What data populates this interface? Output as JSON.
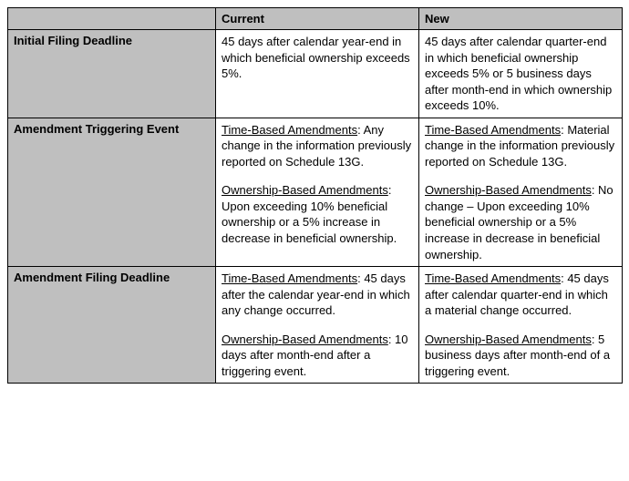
{
  "columns": [
    "Current",
    "New"
  ],
  "rows": [
    {
      "label": "Initial Filing Deadline",
      "current": [
        {
          "lead": null,
          "body": "45 days after calendar year-end in which beneficial ownership exceeds 5%."
        }
      ],
      "new": [
        {
          "lead": null,
          "body": "45 days after calendar quarter-end in which beneficial ownership exceeds 5% or 5 business days after month-end in which ownership exceeds 10%."
        }
      ]
    },
    {
      "label": "Amendment Triggering Event",
      "current": [
        {
          "lead": "Time-Based Amendments",
          "body": ": Any change in the information previously reported on Schedule 13G."
        },
        {
          "lead": "Ownership-Based Amendments",
          "body": ": Upon exceeding 10% beneficial ownership or a 5% increase in decrease in beneficial ownership."
        }
      ],
      "new": [
        {
          "lead": "Time-Based Amendments",
          "body": ": Material change in the information previously reported on Schedule 13G."
        },
        {
          "lead": "Ownership-Based Amendments",
          "body": ": No change – Upon exceeding 10% beneficial ownership or a 5% increase in decrease in beneficial ownership."
        }
      ]
    },
    {
      "label": "Amendment Filing Deadline",
      "current": [
        {
          "lead": "Time-Based Amendments",
          "body": ": 45 days after the calendar year-end in which any change occurred."
        },
        {
          "lead": "Ownership-Based Amendments",
          "body": ": 10 days after month-end after a triggering event."
        }
      ],
      "new": [
        {
          "lead": "Time-Based Amendments",
          "body": ": 45 days after calendar quarter-end in which a material change occurred."
        },
        {
          "lead": "Ownership-Based Amendments",
          "body": ": 5 business days after month-end of a triggering event."
        }
      ]
    }
  ]
}
